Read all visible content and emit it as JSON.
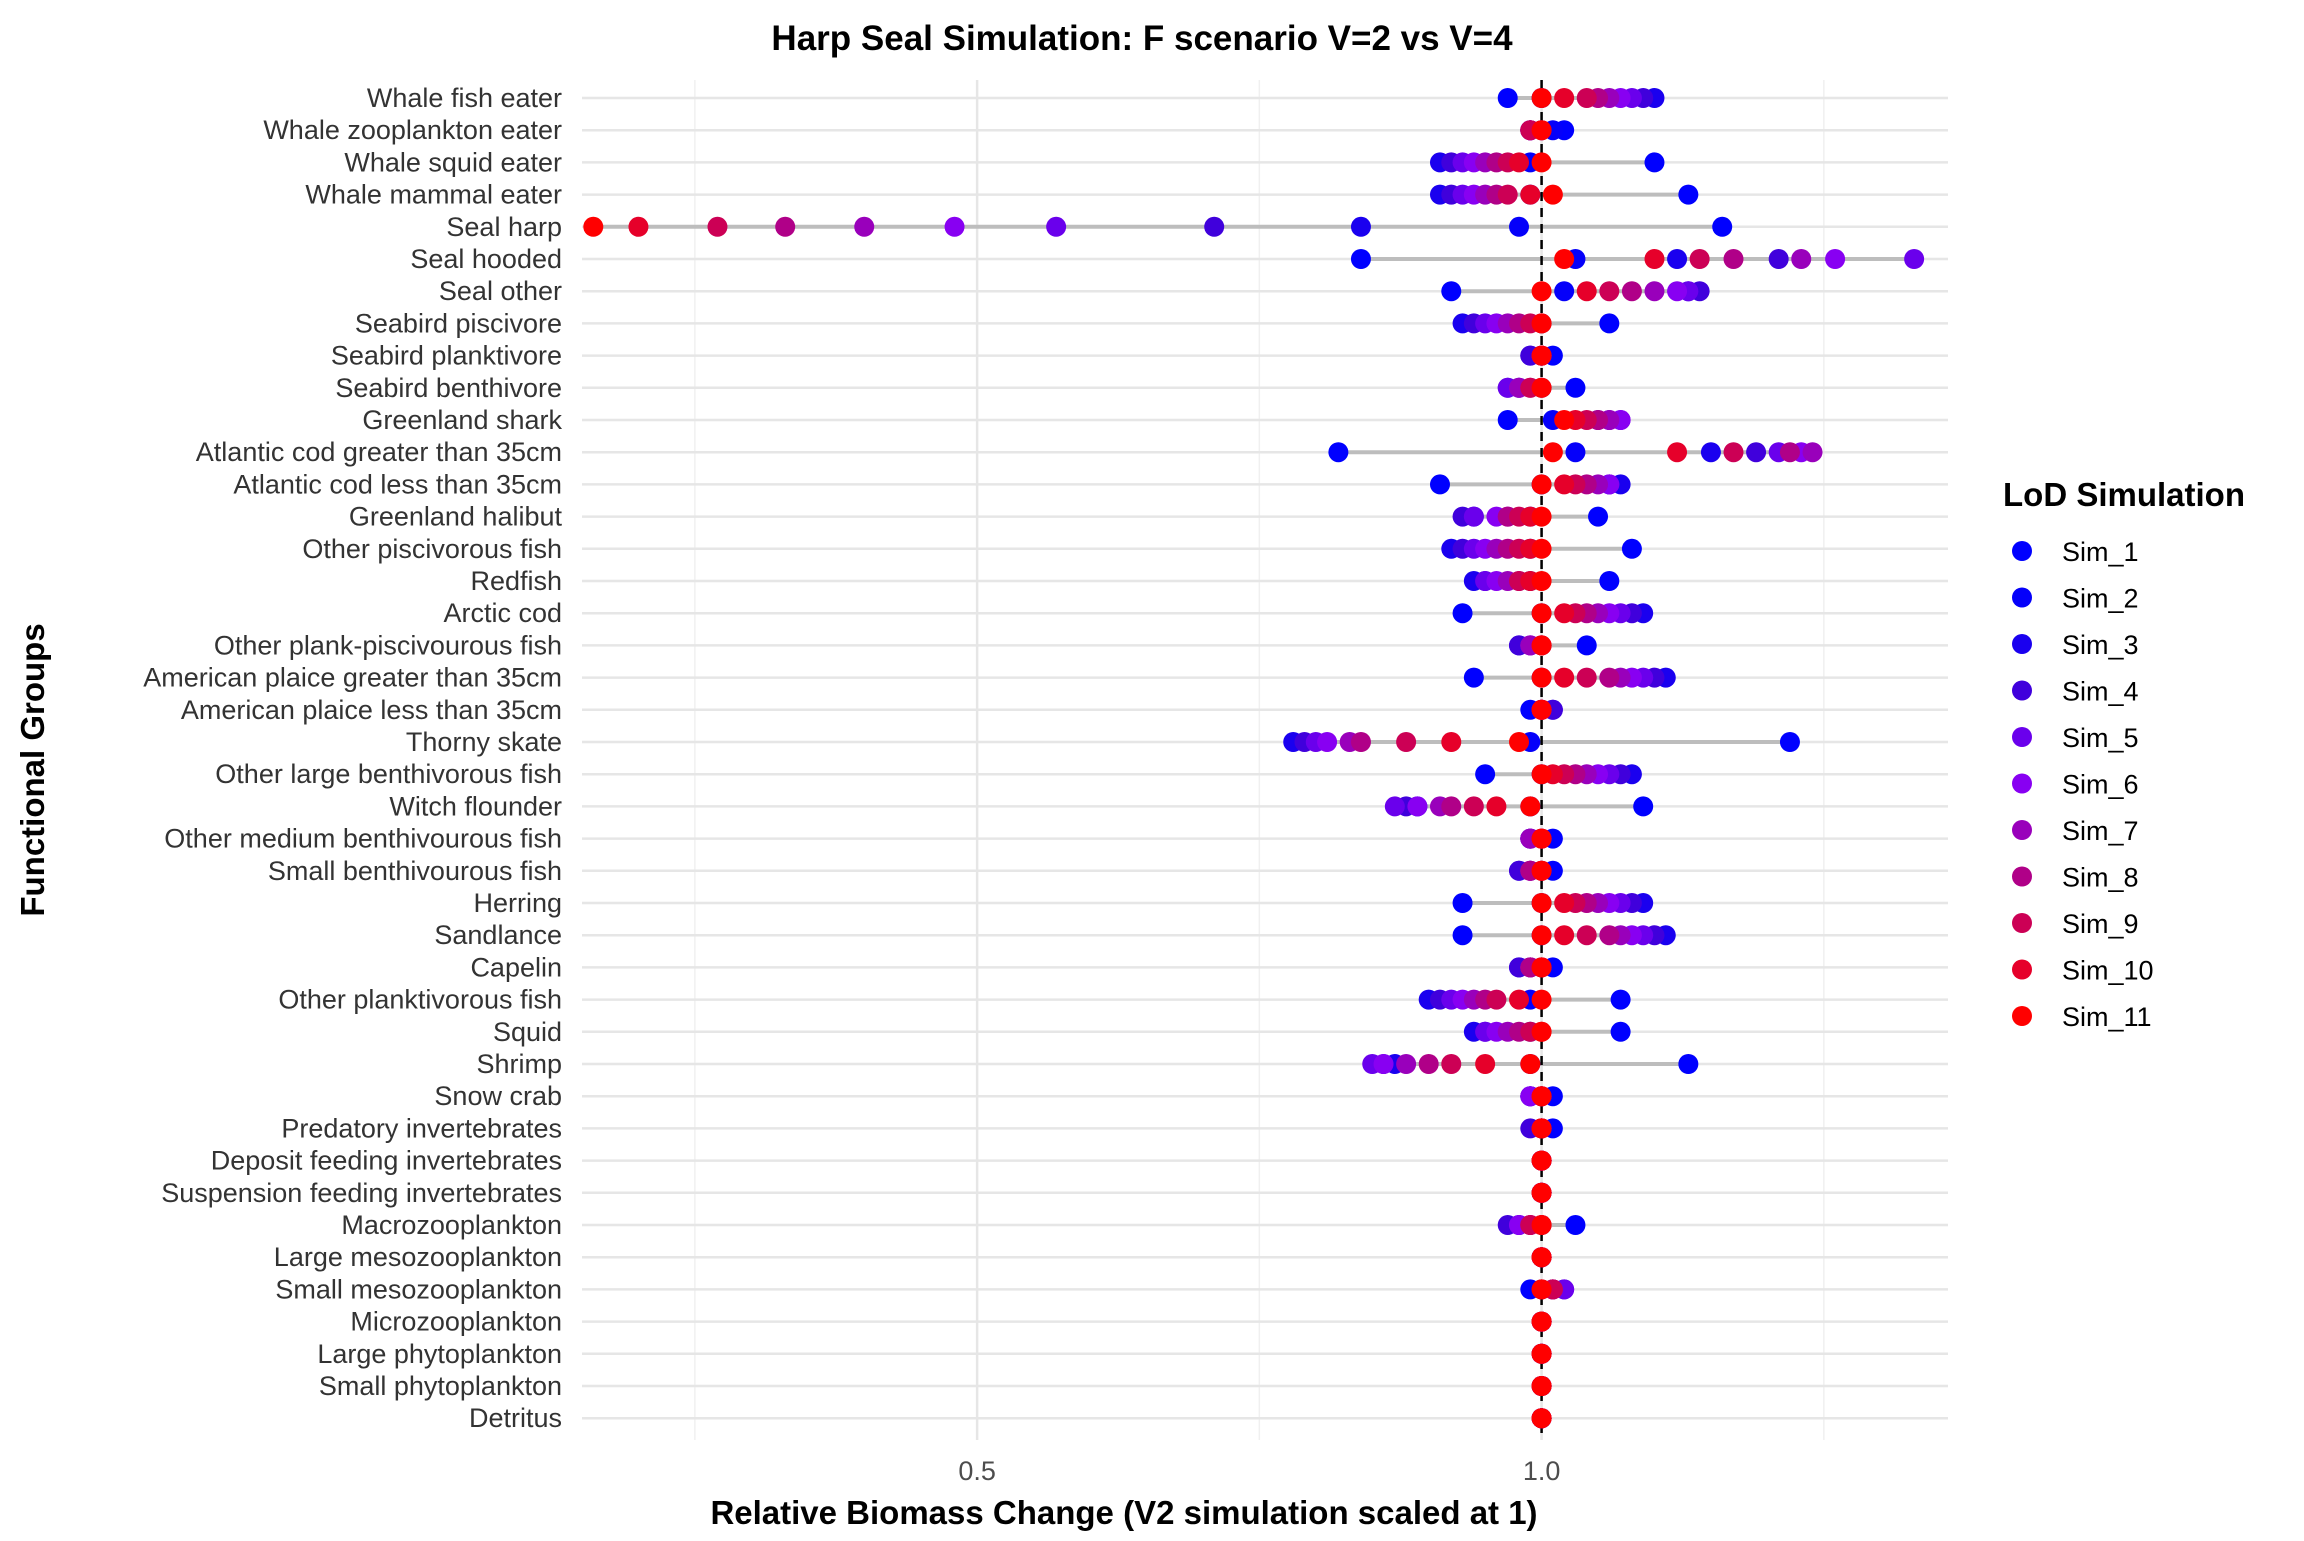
{
  "chart_data": {
    "type": "scatter",
    "title": "Harp Seal Simulation: F scenario V=2 vs V=4",
    "xlabel": "Relative Biomass Change (V2 simulation scaled at 1)",
    "ylabel": "Functional Groups",
    "xlim": [
      0.15,
      1.36
    ],
    "x_ticks": [
      0.5,
      1.0
    ],
    "x_tick_labels": [
      "0.5",
      "1.0"
    ],
    "reference_line_x": 1.0,
    "grid": true,
    "legend": {
      "title": "LoD Simulation",
      "placement": "right",
      "entries": [
        "Sim_1",
        "Sim_2",
        "Sim_3",
        "Sim_4",
        "Sim_5",
        "Sim_6",
        "Sim_7",
        "Sim_8",
        "Sim_9",
        "Sim_10",
        "Sim_11"
      ]
    },
    "colors": [
      "#0000ff",
      "#0500fa",
      "#1a00ef",
      "#4000dc",
      "#6a00ec",
      "#8800f2",
      "#9900bb",
      "#b00088",
      "#cc0055",
      "#e6002a",
      "#ff0000"
    ],
    "categories": [
      "Whale fish eater",
      "Whale zooplankton eater",
      "Whale squid eater",
      "Whale mammal eater",
      "Seal harp",
      "Seal hooded",
      "Seal other",
      "Seabird piscivore",
      "Seabird planktivore",
      "Seabird benthivore",
      "Greenland shark",
      "Atlantic cod greater than 35cm",
      "Atlantic cod less than 35cm",
      "Greenland halibut",
      "Other piscivorous fish",
      "Redfish",
      "Arctic cod",
      "Other plank-piscivourous fish",
      "American plaice greater than 35cm",
      "American plaice less than 35cm",
      "Thorny skate",
      "Other large benthivorous fish",
      "Witch flounder",
      "Other medium benthivourous fish",
      "Small benthivourous fish",
      "Herring",
      "Sandlance",
      "Capelin",
      "Other planktivorous fish",
      "Squid",
      "Shrimp",
      "Snow crab",
      "Predatory invertebrates",
      "Deposit feeding invertebrates",
      "Suspension feeding invertebrates",
      "Macrozooplankton",
      "Large mesozooplankton",
      "Small mesozooplankton",
      "Microzooplankton",
      "Large phytoplankton",
      "Small phytoplankton",
      "Detritus"
    ],
    "values": [
      [
        0.97,
        1.0,
        1.1,
        1.09,
        1.08,
        1.07,
        1.06,
        1.05,
        1.04,
        1.02,
        1.0
      ],
      [
        1.02,
        1.01,
        1.0,
        0.99,
        0.99,
        0.99,
        0.99,
        0.99,
        0.99,
        1.0,
        1.0
      ],
      [
        1.1,
        0.99,
        0.91,
        0.92,
        0.93,
        0.94,
        0.95,
        0.96,
        0.97,
        0.98,
        1.0
      ],
      [
        1.13,
        0.99,
        0.91,
        0.92,
        0.93,
        0.94,
        0.95,
        0.96,
        0.97,
        0.99,
        1.01
      ],
      [
        1.16,
        0.98,
        0.84,
        0.71,
        0.57,
        0.48,
        0.4,
        0.33,
        0.27,
        0.2,
        0.16
      ],
      [
        0.84,
        1.03,
        1.12,
        1.21,
        1.33,
        1.26,
        1.23,
        1.17,
        1.14,
        1.1,
        1.02
      ],
      [
        0.92,
        1.02,
        1.13,
        1.14,
        1.13,
        1.12,
        1.1,
        1.08,
        1.06,
        1.04,
        1.0
      ],
      [
        1.06,
        1.0,
        0.93,
        0.94,
        0.95,
        0.96,
        0.97,
        0.98,
        0.99,
        1.0,
        1.0
      ],
      [
        1.01,
        1.0,
        0.99,
        0.99,
        1.0,
        1.0,
        1.0,
        1.0,
        1.0,
        1.0,
        1.0
      ],
      [
        1.03,
        1.0,
        0.98,
        0.97,
        0.97,
        0.98,
        0.98,
        0.99,
        0.99,
        1.0,
        1.0
      ],
      [
        0.97,
        1.01,
        1.05,
        1.06,
        1.07,
        1.07,
        1.06,
        1.05,
        1.04,
        1.03,
        1.02
      ],
      [
        0.82,
        1.03,
        1.15,
        1.19,
        1.21,
        1.23,
        1.24,
        1.22,
        1.17,
        1.12,
        1.01
      ],
      [
        0.91,
        1.0,
        1.07,
        1.06,
        1.06,
        1.06,
        1.05,
        1.04,
        1.03,
        1.02,
        1.0
      ],
      [
        1.05,
        0.99,
        0.94,
        0.93,
        0.94,
        0.96,
        0.97,
        0.97,
        0.98,
        0.99,
        1.0
      ],
      [
        1.08,
        0.99,
        0.92,
        0.93,
        0.94,
        0.95,
        0.96,
        0.97,
        0.98,
        0.99,
        1.0
      ],
      [
        1.06,
        0.99,
        0.94,
        0.95,
        0.95,
        0.96,
        0.97,
        0.98,
        0.98,
        0.99,
        1.0
      ],
      [
        0.93,
        1.0,
        1.09,
        1.08,
        1.07,
        1.06,
        1.05,
        1.04,
        1.03,
        1.02,
        1.0
      ],
      [
        1.04,
        1.0,
        0.98,
        0.98,
        0.99,
        0.99,
        0.99,
        1.0,
        1.0,
        1.0,
        1.0
      ],
      [
        0.94,
        1.0,
        1.11,
        1.1,
        1.09,
        1.08,
        1.07,
        1.06,
        1.04,
        1.02,
        1.0
      ],
      [
        0.99,
        1.0,
        1.01,
        1.01,
        1.0,
        1.0,
        1.0,
        1.0,
        1.0,
        1.0,
        1.0
      ],
      [
        1.22,
        0.99,
        0.78,
        0.79,
        0.8,
        0.81,
        0.83,
        0.84,
        0.88,
        0.92,
        0.98
      ],
      [
        0.95,
        1.0,
        1.08,
        1.07,
        1.06,
        1.05,
        1.04,
        1.03,
        1.02,
        1.01,
        1.0
      ],
      [
        1.09,
        0.99,
        0.89,
        0.88,
        0.87,
        0.89,
        0.91,
        0.92,
        0.94,
        0.96,
        0.99
      ],
      [
        1.01,
        1.0,
        0.99,
        0.99,
        0.99,
        0.99,
        0.99,
        1.0,
        1.0,
        1.0,
        1.0
      ],
      [
        1.01,
        1.0,
        0.98,
        0.98,
        0.99,
        0.99,
        0.99,
        0.99,
        1.0,
        1.0,
        1.0
      ],
      [
        0.93,
        1.0,
        1.09,
        1.08,
        1.07,
        1.06,
        1.05,
        1.04,
        1.03,
        1.02,
        1.0
      ],
      [
        0.93,
        1.0,
        1.11,
        1.1,
        1.09,
        1.08,
        1.07,
        1.06,
        1.04,
        1.02,
        1.0
      ],
      [
        1.01,
        1.0,
        0.98,
        0.98,
        0.99,
        0.99,
        0.99,
        0.99,
        1.0,
        1.0,
        1.0
      ],
      [
        1.07,
        0.99,
        0.9,
        0.91,
        0.92,
        0.93,
        0.94,
        0.95,
        0.96,
        0.98,
        1.0
      ],
      [
        1.07,
        0.99,
        0.94,
        0.95,
        0.95,
        0.96,
        0.97,
        0.98,
        0.99,
        1.0,
        1.0
      ],
      [
        1.13,
        0.99,
        0.87,
        0.86,
        0.85,
        0.86,
        0.88,
        0.9,
        0.92,
        0.95,
        0.99
      ],
      [
        1.01,
        1.0,
        0.99,
        0.99,
        0.99,
        0.99,
        1.0,
        1.0,
        1.0,
        1.0,
        1.0
      ],
      [
        1.01,
        1.0,
        1.0,
        0.99,
        1.0,
        1.0,
        1.0,
        1.0,
        1.0,
        1.0,
        1.0
      ],
      [
        1.0,
        1.0,
        1.0,
        1.0,
        1.0,
        1.0,
        1.0,
        1.0,
        1.0,
        1.0,
        1.0
      ],
      [
        1.0,
        1.0,
        1.0,
        1.0,
        1.0,
        1.0,
        1.0,
        1.0,
        1.0,
        1.0,
        1.0
      ],
      [
        1.03,
        1.0,
        0.98,
        0.97,
        0.98,
        0.98,
        0.99,
        0.99,
        0.99,
        1.0,
        1.0
      ],
      [
        1.0,
        1.0,
        1.0,
        1.0,
        1.0,
        1.0,
        1.0,
        1.0,
        1.0,
        1.0,
        1.0
      ],
      [
        0.99,
        1.0,
        1.01,
        1.02,
        1.02,
        1.01,
        1.01,
        1.01,
        1.01,
        1.0,
        1.0
      ],
      [
        1.0,
        1.0,
        1.0,
        1.0,
        1.0,
        1.0,
        1.0,
        1.0,
        1.0,
        1.0,
        1.0
      ],
      [
        1.0,
        1.0,
        1.0,
        1.0,
        1.0,
        1.0,
        1.0,
        1.0,
        1.0,
        1.0,
        1.0
      ],
      [
        1.0,
        1.0,
        1.0,
        1.0,
        1.0,
        1.0,
        1.0,
        1.0,
        1.0,
        1.0,
        1.0
      ],
      [
        1.0,
        1.0,
        1.0,
        1.0,
        1.0,
        1.0,
        1.0,
        1.0,
        1.0,
        1.0,
        1.0
      ]
    ]
  }
}
